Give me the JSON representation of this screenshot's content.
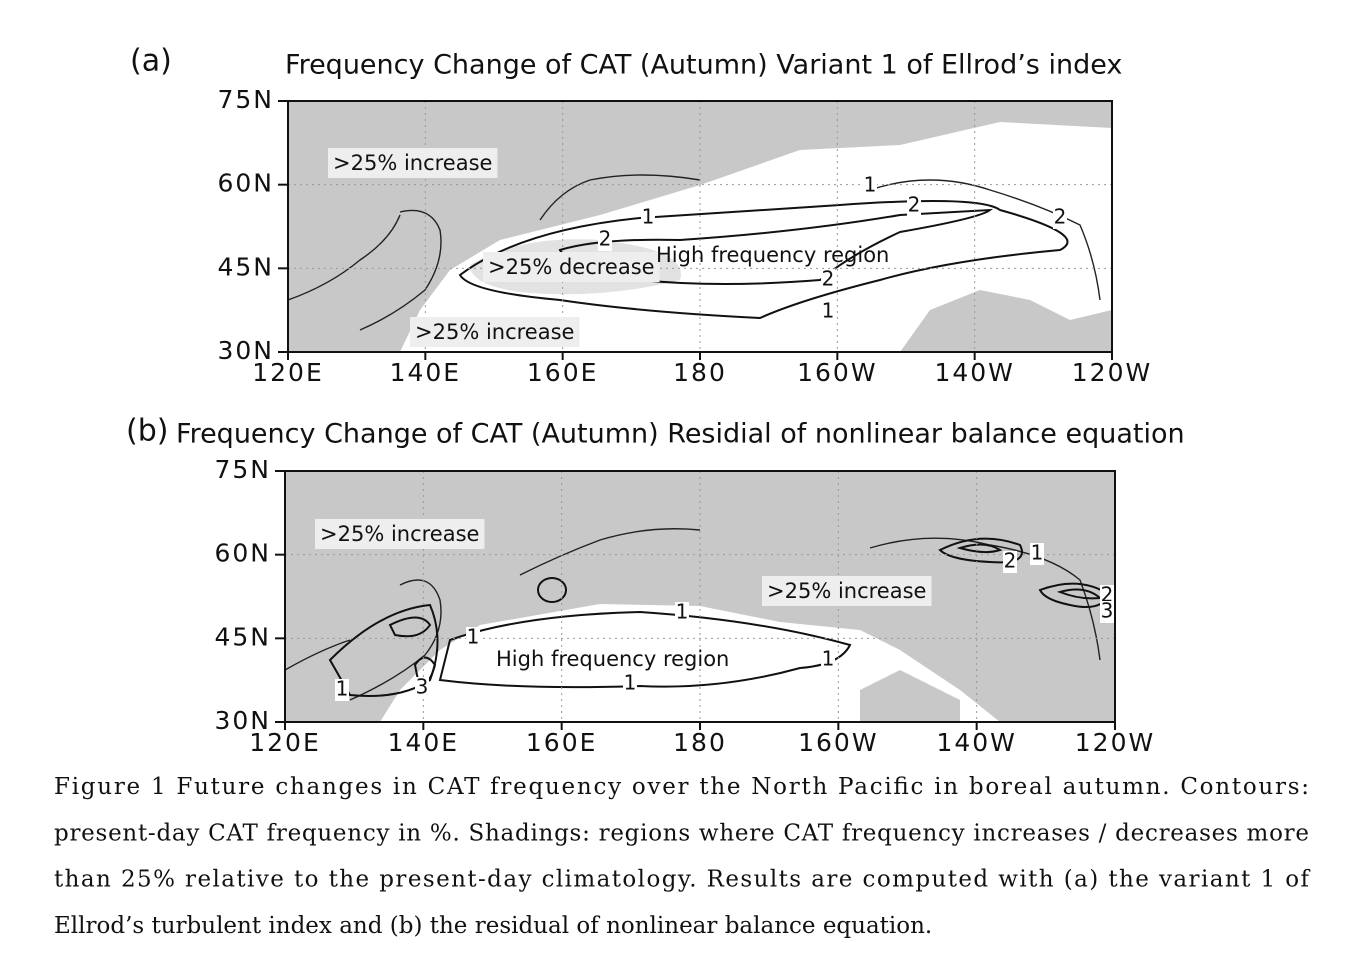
{
  "panels": [
    {
      "label": "(a)",
      "title": "Frequency Change of CAT (Autumn) Variant 1 of Ellrod’s index",
      "yticks": [
        "75N",
        "60N",
        "45N",
        "30N"
      ],
      "xticks": [
        "120E",
        "140E",
        "160E",
        "180",
        "160W",
        "140W",
        "120W"
      ],
      "annotations": [
        ">25% increase",
        ">25% decrease",
        ">25% increase",
        "High frequency region"
      ],
      "contour_labels": [
        "1",
        "2",
        "2",
        "1",
        "1",
        "2",
        "2"
      ]
    },
    {
      "label": "(b)",
      "title": "Frequency Change of CAT (Autumn) Residial of nonlinear balance equation",
      "yticks": [
        "75N",
        "60N",
        "45N",
        "30N"
      ],
      "xticks": [
        "120E",
        "140E",
        "160E",
        "180",
        "160W",
        "140W",
        "120W"
      ],
      "annotations": [
        ">25% increase",
        ">25% increase",
        "High frequency region"
      ],
      "contour_labels": [
        "1",
        "1",
        "1",
        "1",
        "1",
        "3",
        "2",
        "1",
        "2",
        "3"
      ]
    }
  ],
  "caption": {
    "lines": [
      "Figure 1 Future changes in CAT frequency over the North Pacific in boreal autumn. Contours:",
      "present-day CAT frequency in %. Shadings: regions where CAT frequency increases / decreases more",
      "than 25% relative to the present-day climatology. Results are computed with (a) the variant 1 of",
      "Ellrod’s turbulent index and (b) the residual of nonlinear balance equation."
    ]
  }
}
